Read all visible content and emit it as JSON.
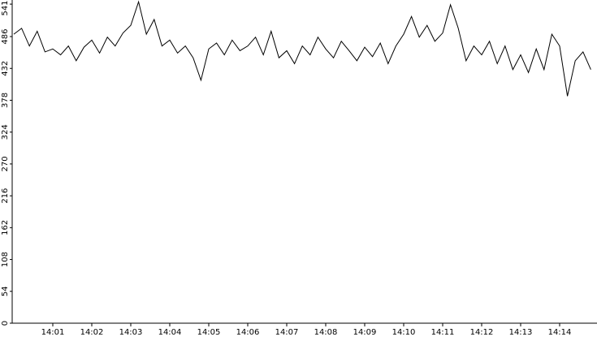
{
  "chart_data": {
    "type": "line",
    "color": "#000000",
    "x": [
      840.0,
      840.2,
      840.4,
      840.6,
      840.8,
      841.0,
      841.2,
      841.4,
      841.6,
      841.8,
      842.0,
      842.2,
      842.4,
      842.6,
      842.8,
      843.0,
      843.2,
      843.4,
      843.6,
      843.8,
      844.0,
      844.2,
      844.4,
      844.6,
      844.8,
      845.0,
      845.2,
      845.4,
      845.6,
      845.8,
      846.0,
      846.2,
      846.4,
      846.6,
      846.8,
      847.0,
      847.2,
      847.4,
      847.6,
      847.8,
      848.0,
      848.2,
      848.4,
      848.6,
      848.8,
      849.0,
      849.2,
      849.4,
      849.6,
      849.8,
      850.0,
      850.2,
      850.4,
      850.6,
      850.8,
      851.0,
      851.2,
      851.4,
      851.6,
      851.8,
      852.0,
      852.2,
      852.4,
      852.6,
      852.8,
      853.0,
      853.2,
      853.4,
      853.6,
      853.8,
      854.0,
      854.2,
      854.4,
      854.6,
      854.8
    ],
    "values": [
      490,
      500,
      470,
      495,
      460,
      465,
      455,
      470,
      445,
      468,
      480,
      458,
      485,
      470,
      492,
      505,
      545,
      490,
      515,
      470,
      480,
      458,
      470,
      450,
      412,
      465,
      475,
      455,
      480,
      462,
      470,
      485,
      455,
      495,
      450,
      462,
      440,
      470,
      455,
      485,
      465,
      450,
      478,
      462,
      445,
      468,
      452,
      475,
      440,
      470,
      490,
      520,
      485,
      505,
      478,
      492,
      540,
      500,
      445,
      470,
      455,
      478,
      440,
      470,
      430,
      455,
      425,
      465,
      430,
      490,
      470,
      385,
      445,
      460,
      430
    ],
    "xlim": [
      840,
      855
    ],
    "xticks": [
      {
        "value": 841,
        "label": "14:01"
      },
      {
        "value": 842,
        "label": "14:02"
      },
      {
        "value": 843,
        "label": "14:03"
      },
      {
        "value": 844,
        "label": "14:04"
      },
      {
        "value": 845,
        "label": "14:05"
      },
      {
        "value": 846,
        "label": "14:06"
      },
      {
        "value": 847,
        "label": "14:07"
      },
      {
        "value": 848,
        "label": "14:08"
      },
      {
        "value": 849,
        "label": "14:09"
      },
      {
        "value": 850,
        "label": "14:10"
      },
      {
        "value": 851,
        "label": "14:11"
      },
      {
        "value": 852,
        "label": "14:12"
      },
      {
        "value": 853,
        "label": "14:13"
      },
      {
        "value": 854,
        "label": "14:14"
      }
    ],
    "ylim": [
      0,
      548
    ],
    "yticks": [
      0,
      54,
      108,
      162,
      216,
      270,
      324,
      378,
      432,
      486,
      541
    ]
  }
}
